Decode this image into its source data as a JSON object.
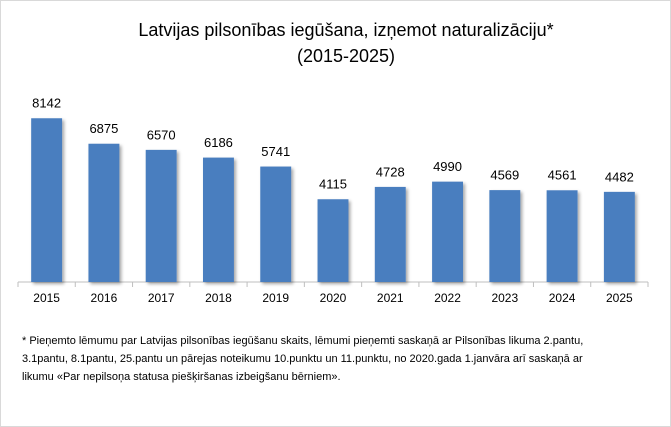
{
  "chart_data": {
    "type": "bar",
    "title": "Latvijas pilsonības iegūšana, izņemot naturalizāciju*",
    "subtitle": "(2015-2025)",
    "categories": [
      "2015",
      "2016",
      "2017",
      "2018",
      "2019",
      "2020",
      "2021",
      "2022",
      "2023",
      "2024",
      "2025"
    ],
    "values": [
      8142,
      6875,
      6570,
      6186,
      5741,
      4115,
      4728,
      4990,
      4569,
      4561,
      4482
    ],
    "color": "#4a7ebf",
    "ylim": [
      0,
      9000
    ],
    "footnote": [
      "* Pieņemto lēmumu par Latvijas pilsonības iegūšanu skaits, lēmumi pieņemti saskaņā ar Pilsonības likuma 2.pantu,",
      "3.1pantu, 8.1pantu, 25.pantu un pārejas noteikumu 10.punktu un 11.punktu, no 2020.gada 1.janvāra arī saskaņā ar",
      "likumu «Par nepilsoņa statusa piešķiršanas izbeigšanu bērniem»."
    ]
  }
}
